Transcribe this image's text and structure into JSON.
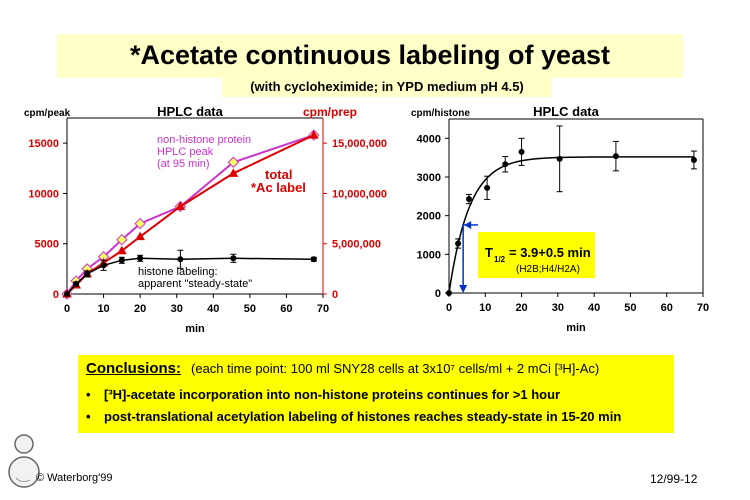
{
  "page": {
    "title": "*Acetate continuous labeling of yeast",
    "subtitle": "(with cycloheximide; in YPD medium pH 4.5)",
    "footer_left": "© Waterborg'99",
    "footer_right": "12/99-12"
  },
  "conclusions": {
    "heading": "Conclusions:",
    "details": "(each time point: 100 ml SNY28 cells at 3x10⁷ cells/ml + 2 mCi [³H]-Ac)",
    "bullets": [
      "[³H]-acetate incorporation into non-histone proteins continues for >1 hour",
      "post-translational acetylation labeling of histones reaches steady-state in 15-20 min"
    ]
  },
  "colors": {
    "title_bg": "#ffffc8",
    "conclusions_bg": "#ffff00",
    "magenta": "#cc33cc",
    "red": "#dd0000",
    "diamond": "#ffff66",
    "halflife_marker": "#0033cc"
  },
  "chart_data": [
    {
      "type": "line",
      "title": "HPLC data",
      "xlabel": "min",
      "ylabel": "cpm/peak",
      "ylabel_right": "cpm/prep",
      "xlim": [
        0,
        70
      ],
      "ylim": [
        0,
        17500
      ],
      "ylim_right": [
        0,
        17500000
      ],
      "x_ticks": [
        0,
        10,
        20,
        30,
        40,
        50,
        60,
        70
      ],
      "y_ticks": [
        0,
        5000,
        10000,
        15000
      ],
      "y_ticks_labels": [
        "0",
        "5000",
        "10000",
        "15000"
      ],
      "y_right_ticks": [
        0,
        5000000,
        10000000,
        15000000
      ],
      "y_right_ticks_labels": [
        "0",
        "5,000,000",
        "10,000,000",
        "15,000,000"
      ],
      "grid": false,
      "series": [
        {
          "name": "non-histone protein HPLC peak (at 95 min)",
          "label_lines": [
            "non-histone protein",
            "HPLC peak",
            "(at 95 min)"
          ],
          "axis": "left",
          "color": "#cc33cc",
          "marker": "diamond",
          "x": [
            0,
            2.5,
            5.5,
            10,
            15,
            20,
            31,
            45.5,
            67.5
          ],
          "y": [
            0,
            1300,
            2500,
            3700,
            5400,
            7000,
            8700,
            13100,
            15800
          ]
        },
        {
          "name": "total *Ac label",
          "label_lines": [
            "total",
            "*Ac label"
          ],
          "axis": "right",
          "color": "#dd0000",
          "marker": "triangle",
          "x": [
            0,
            2.5,
            5.5,
            10,
            15,
            20,
            31,
            45.5,
            67.5
          ],
          "y": [
            0,
            900000,
            2000000,
            3100000,
            4300000,
            5700000,
            8700000,
            12000000,
            15800000
          ]
        },
        {
          "name": "histone labeling: apparent \"steady-state\"",
          "label_lines": [
            "histone labeling:",
            "apparent \"steady-state\""
          ],
          "axis": "left",
          "color": "#000000",
          "marker": "circle",
          "x": [
            0,
            2.5,
            5.5,
            10,
            15,
            20,
            31,
            45.5,
            67.5
          ],
          "y": [
            0,
            1000,
            2000,
            2850,
            3350,
            3550,
            3450,
            3550,
            3450
          ],
          "err": [
            0,
            200,
            300,
            500,
            300,
            300,
            900,
            400,
            200
          ]
        }
      ]
    },
    {
      "type": "scatter",
      "title": "HPLC data",
      "xlabel": "min",
      "ylabel": "cpm/histone",
      "xlim": [
        0,
        70
      ],
      "ylim": [
        0,
        4500
      ],
      "x_ticks": [
        0,
        10,
        20,
        30,
        40,
        50,
        60,
        70
      ],
      "y_ticks": [
        0,
        1000,
        2000,
        3000,
        4000
      ],
      "grid": false,
      "series": [
        {
          "name": "cpm/histone",
          "x": [
            0,
            2.5,
            5.5,
            10.5,
            15.5,
            20,
            30.5,
            46,
            67.5
          ],
          "y": [
            0,
            1280,
            2430,
            2720,
            3330,
            3650,
            3470,
            3540,
            3440
          ],
          "err": [
            0,
            120,
            120,
            300,
            200,
            350,
            850,
            380,
            230
          ]
        }
      ],
      "fit": {
        "kind": "exponential_rise",
        "plateau": 3520,
        "t_half": 3.9
      },
      "half_time_marker_x": 3.9,
      "annotation": {
        "main": "T",
        "sub": "1/2",
        "value": "= 3.9+0.5 min",
        "note": "(H2B;H4/H2A)"
      }
    }
  ]
}
